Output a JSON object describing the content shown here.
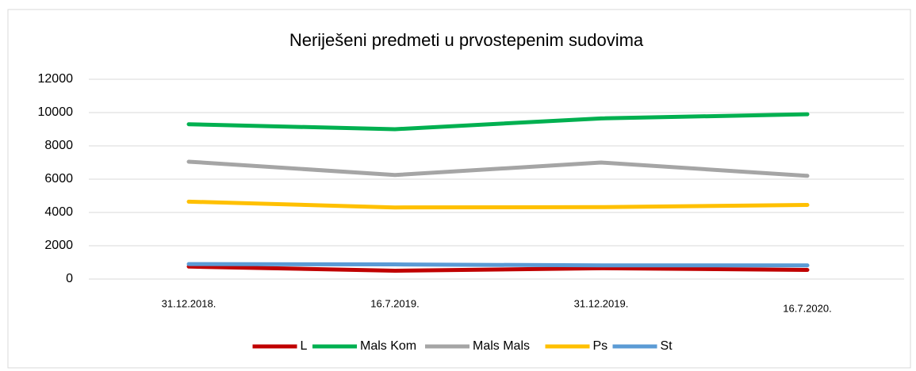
{
  "chart_data": {
    "type": "line",
    "title": "Neriješeni predmeti u prvostepenim sudovima",
    "categories": [
      "31.12.2018.",
      "16.7.2019.",
      "31.12.2019.",
      "16.7.2020."
    ],
    "series": [
      {
        "name": "L",
        "color": "#c00000",
        "values": [
          750,
          500,
          650,
          550
        ]
      },
      {
        "name": "Mals Kom",
        "color": "#00b050",
        "values": [
          9300,
          9000,
          9650,
          9900
        ]
      },
      {
        "name": "Mals Mals",
        "color": "#a5a5a5",
        "values": [
          7050,
          6250,
          7000,
          6200
        ]
      },
      {
        "name": "Ps",
        "color": "#ffc000",
        "values": [
          4650,
          4300,
          4320,
          4450
        ]
      },
      {
        "name": "St",
        "color": "#5b9bd5",
        "values": [
          900,
          880,
          820,
          820
        ]
      }
    ],
    "ylim": [
      0,
      12000
    ],
    "yticks": [
      0,
      2000,
      4000,
      6000,
      8000,
      10000,
      12000
    ],
    "grid": true,
    "legend": "bottom"
  }
}
